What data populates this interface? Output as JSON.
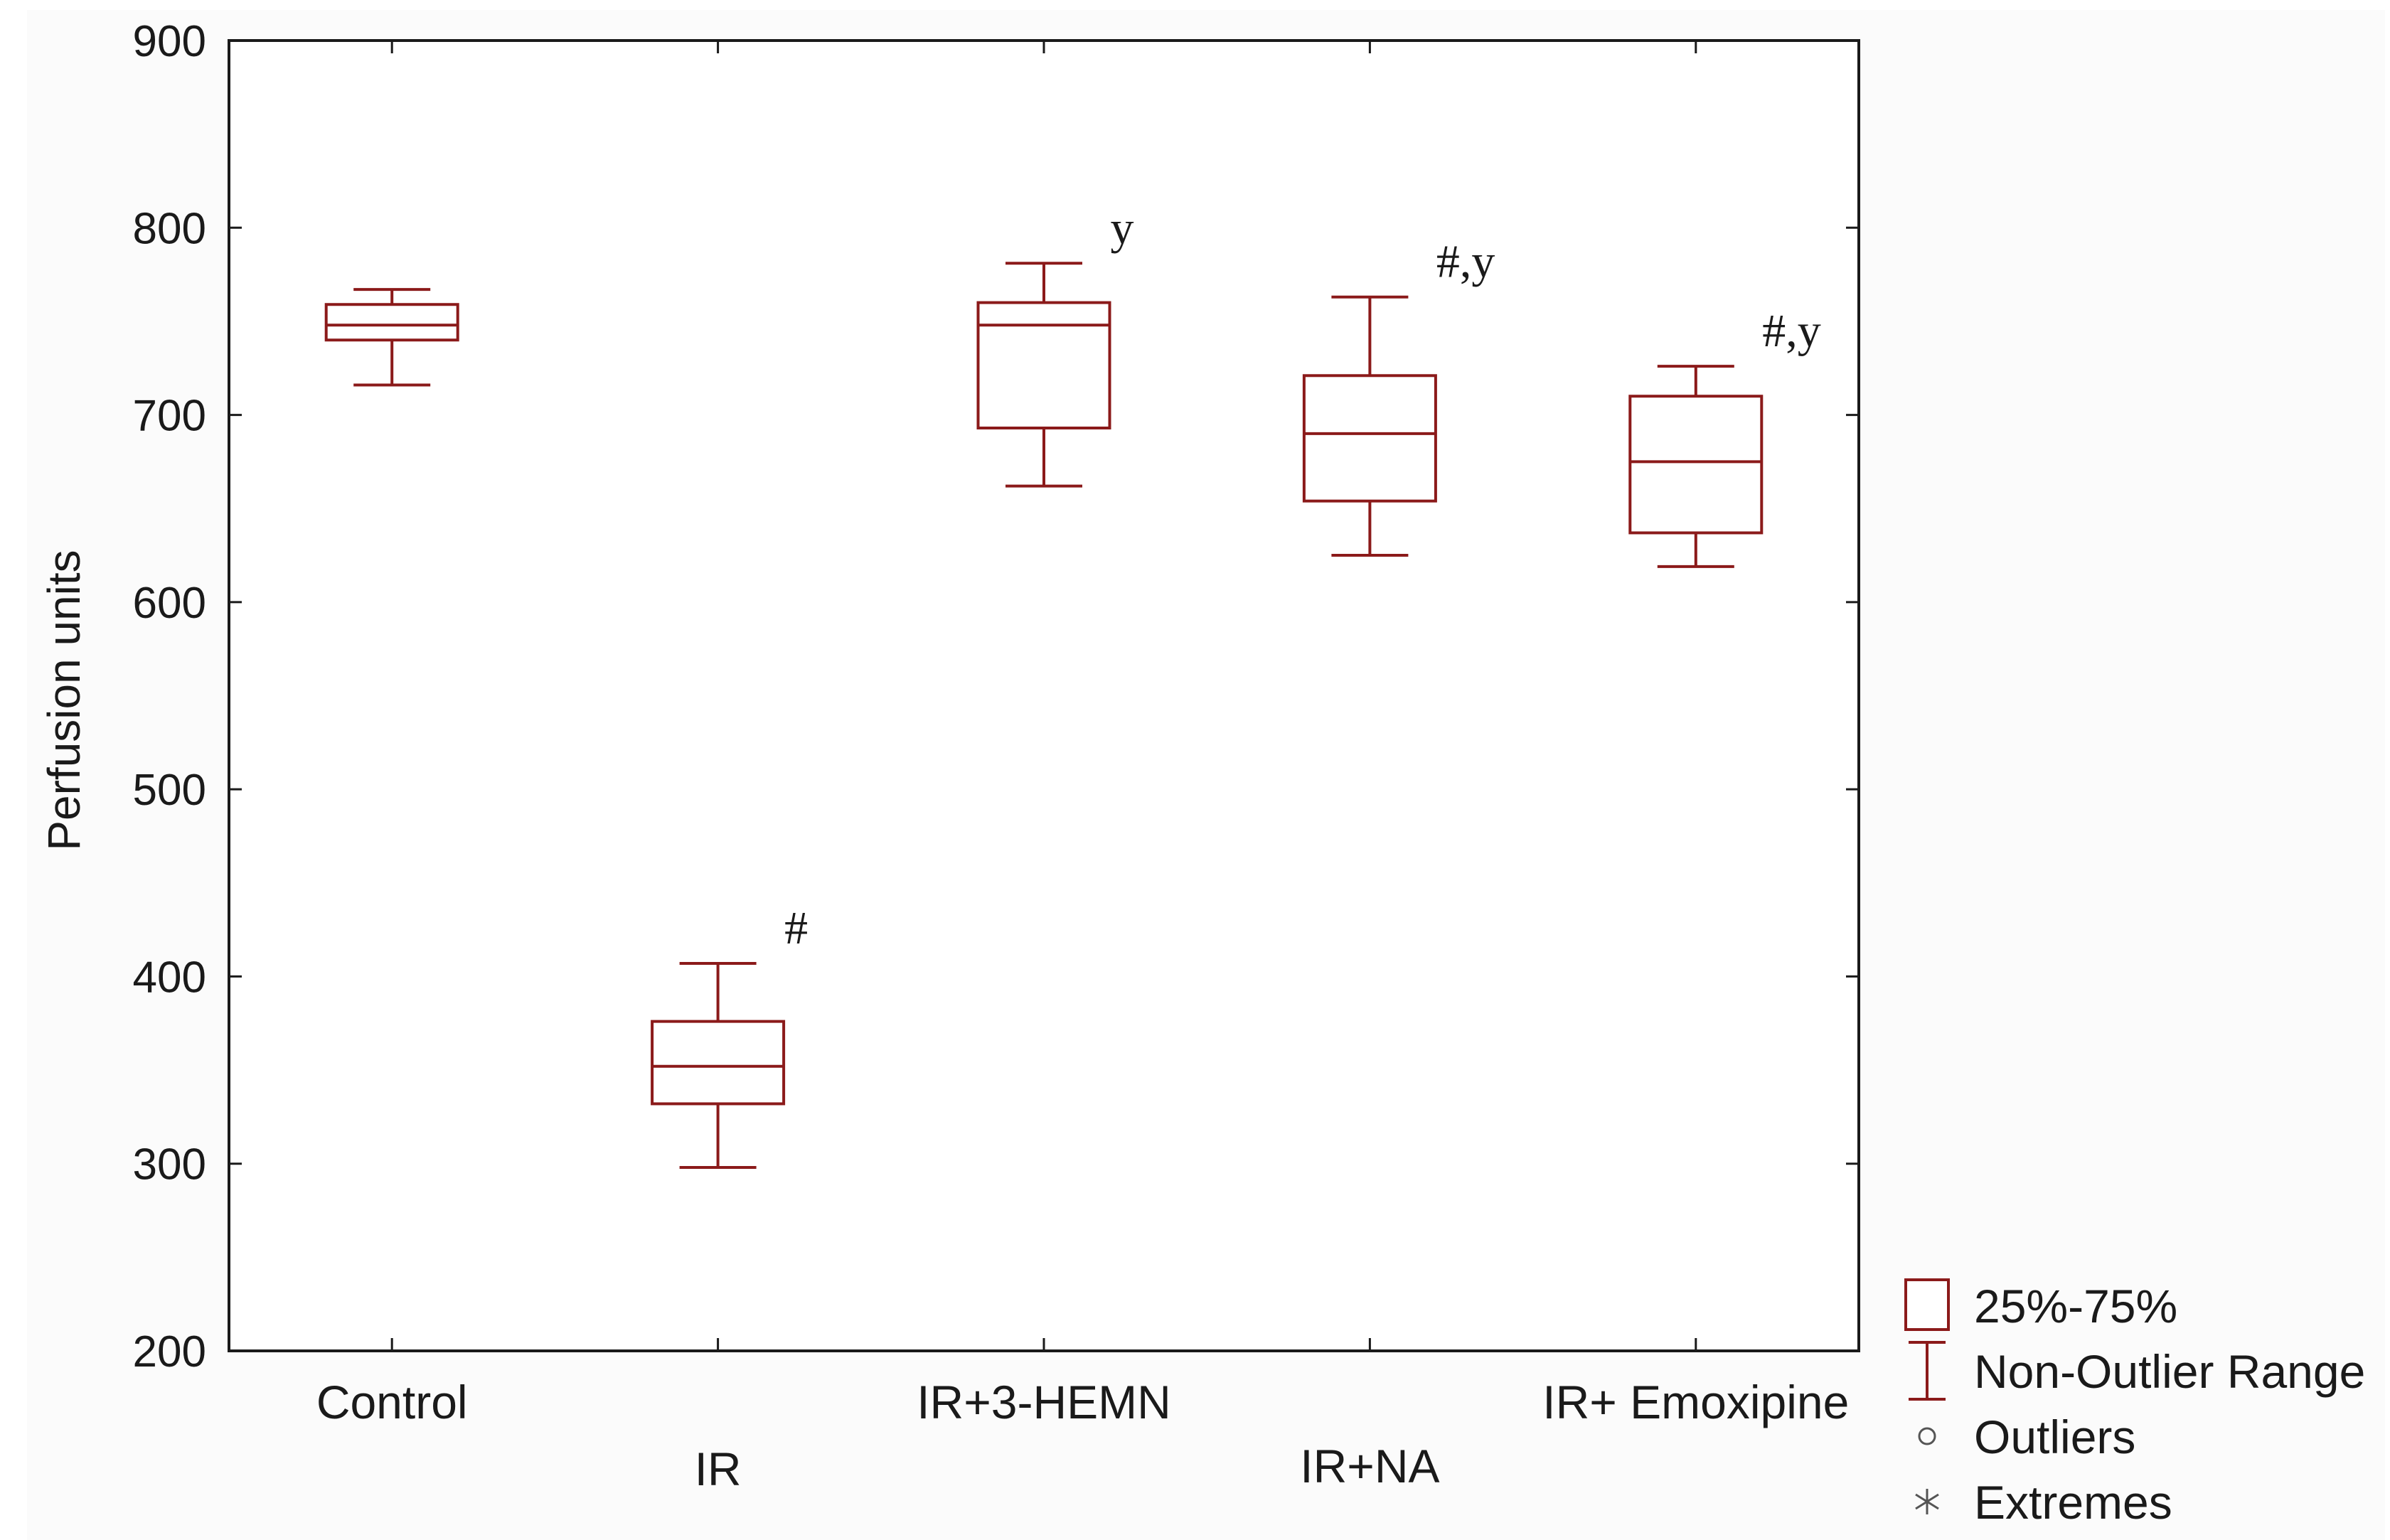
{
  "chart_data": {
    "type": "boxplot",
    "title": "",
    "xlabel": "",
    "ylabel": "Perfusion units",
    "ylim": [
      200,
      900
    ],
    "yticks": [
      200,
      300,
      400,
      500,
      600,
      700,
      800,
      900
    ],
    "grid": "horizontal dotted",
    "legend_position": "bottom-right",
    "box_color": "#8b1a1a",
    "categories": [
      "Control",
      "IR",
      "IR+3-HEMN",
      "IR+NA",
      "IR+ Emoxipine"
    ],
    "boxes": [
      {
        "group": "Control",
        "min": 716,
        "q1": 740,
        "median": 748,
        "q3": 759,
        "max": 767,
        "annotation": ""
      },
      {
        "group": "IR",
        "min": 298,
        "q1": 332,
        "median": 352,
        "q3": 376,
        "max": 407,
        "annotation": "#"
      },
      {
        "group": "IR+3-HEMN",
        "min": 662,
        "q1": 693,
        "median": 748,
        "q3": 760,
        "max": 781,
        "annotation": "y"
      },
      {
        "group": "IR+NA",
        "min": 625,
        "q1": 654,
        "median": 690,
        "q3": 721,
        "max": 763,
        "annotation": "#,y"
      },
      {
        "group": "IR+ Emoxipine",
        "min": 619,
        "q1": 637,
        "median": 675,
        "q3": 710,
        "max": 726,
        "annotation": "#,y"
      }
    ],
    "legend": [
      {
        "symbol": "box",
        "label": "25%-75%"
      },
      {
        "symbol": "whisker",
        "label": "Non-Outlier Range"
      },
      {
        "symbol": "circle",
        "label": "Outliers"
      },
      {
        "symbol": "asterisk",
        "label": "Extremes"
      }
    ]
  }
}
